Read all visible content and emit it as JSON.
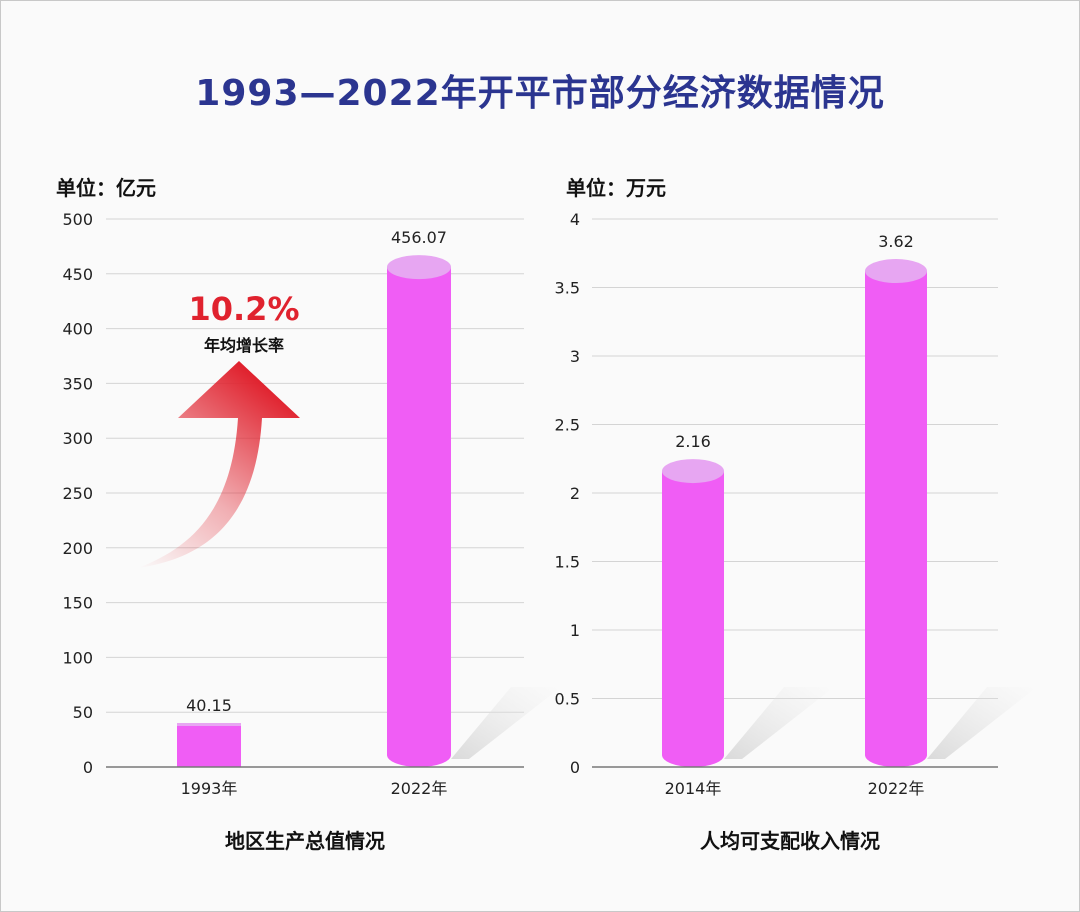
{
  "title": "1993—2022年开平市部分经济数据情况",
  "colors": {
    "title": "#2b3590",
    "bar": "#f05df5",
    "bar_top": "#e7a6f2",
    "arrow": "#e0222e"
  },
  "chart_data": [
    {
      "type": "bar",
      "unit": "单位：亿元",
      "caption": "地区生产总值情况",
      "categories": [
        "1993年",
        "2022年"
      ],
      "values": [
        40.15,
        456.07
      ],
      "value_labels": [
        "40.15",
        "456.07"
      ],
      "ylim": [
        0,
        500
      ],
      "yticks": [
        0,
        50,
        100,
        150,
        200,
        250,
        300,
        350,
        400,
        450,
        500
      ],
      "grid": true,
      "annotation": {
        "value": "10.2%",
        "label": "年均增长率",
        "icon": "up-arrow-icon"
      }
    },
    {
      "type": "bar",
      "unit": "单位：万元",
      "caption": "人均可支配收入情况",
      "categories": [
        "2014年",
        "2022年"
      ],
      "values": [
        2.16,
        3.62
      ],
      "value_labels": [
        "2.16",
        "3.62"
      ],
      "ylim": [
        0,
        4
      ],
      "yticks": [
        0,
        0.5,
        1,
        1.5,
        2,
        2.5,
        3,
        3.5,
        4
      ],
      "grid": true
    }
  ]
}
